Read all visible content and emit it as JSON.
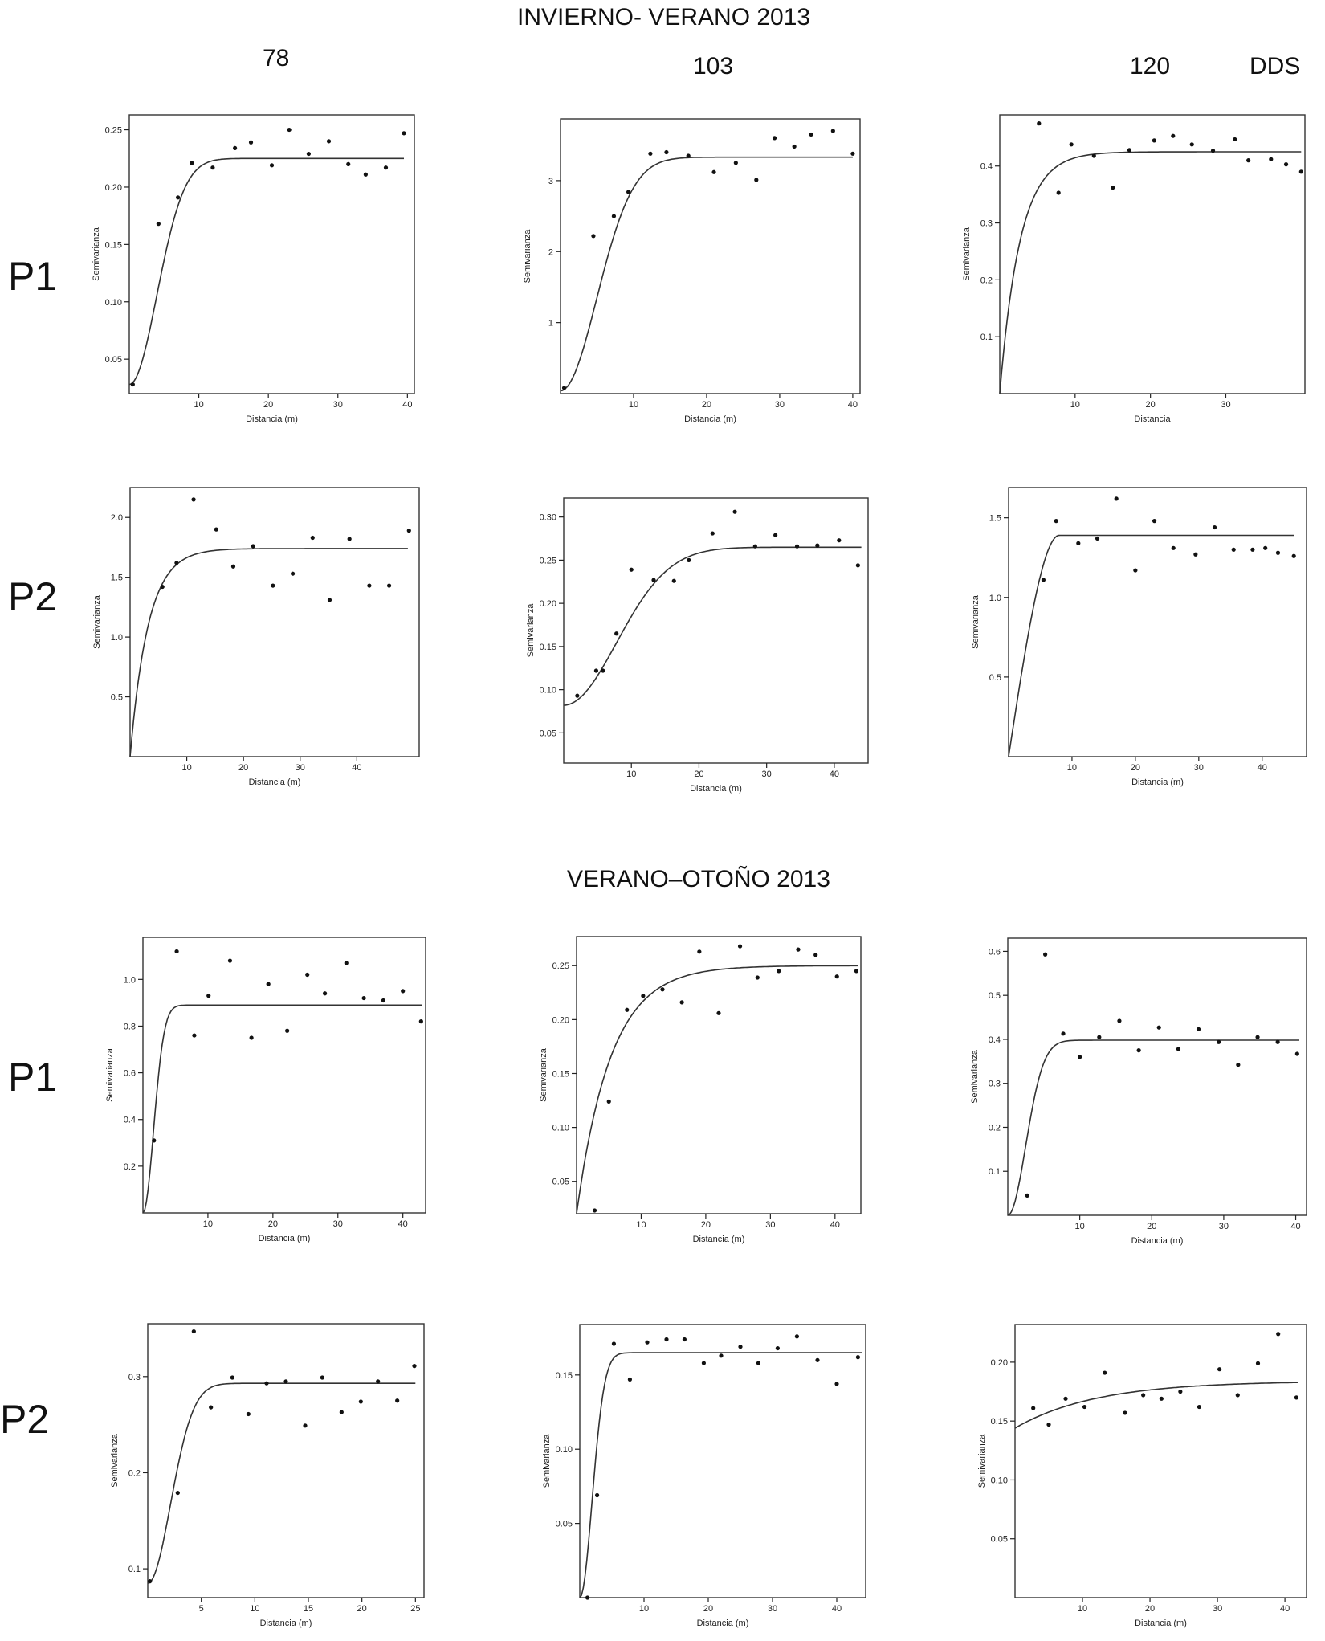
{
  "section_titles": {
    "top": "INVIERNO- VERANO 2013",
    "bottom": "VERANO–OTOÑO 2013"
  },
  "column_headers": {
    "c1": "78",
    "c2": "103",
    "c3": "120",
    "unit": "DDS"
  },
  "row_labels": {
    "top_p1": "P1",
    "top_p2": "P2",
    "bot_p1": "P1",
    "bot_p2": "P2"
  },
  "chart_data": [
    {
      "type": "scatter",
      "section": "INVIERNO- VERANO 2013",
      "row": "P1",
      "column": "78",
      "xlabel": "Distancia (m)",
      "ylabel": "Semivarianza",
      "xlim": [
        0,
        41
      ],
      "ylim": [
        0.02,
        0.263
      ],
      "xticks": [
        10,
        20,
        30,
        40
      ],
      "yticks": [
        0.05,
        0.1,
        0.15,
        0.2,
        0.25
      ],
      "yticklabels": [
        "0.05",
        "0.10",
        "0.15",
        "0.20",
        "0.25"
      ],
      "model": {
        "kind": "gaussian",
        "nugget": 0.028,
        "sill": 0.225,
        "range": 5.6,
        "xmax": 39.5
      },
      "x": [
        0.5,
        4.2,
        7.0,
        9.0,
        12.0,
        15.2,
        17.5,
        20.5,
        23.0,
        25.8,
        28.7,
        31.5,
        34.0,
        36.9,
        39.5
      ],
      "y": [
        0.028,
        0.168,
        0.191,
        0.221,
        0.217,
        0.234,
        0.239,
        0.219,
        0.25,
        0.229,
        0.24,
        0.22,
        0.211,
        0.217,
        0.247
      ]
    },
    {
      "type": "scatter",
      "section": "INVIERNO- VERANO 2013",
      "row": "P1",
      "column": "103",
      "xlabel": "Distancia (m)",
      "ylabel": "Semivarianza",
      "xlim": [
        0,
        41
      ],
      "ylim": [
        0,
        3.87
      ],
      "xticks": [
        10,
        20,
        30,
        40
      ],
      "yticks": [
        1,
        2,
        3
      ],
      "yticklabels": [
        "1",
        "2",
        "3"
      ],
      "model": {
        "kind": "gaussian",
        "nugget": 0.04,
        "sill": 3.33,
        "range": 7.0,
        "xmax": 40
      },
      "x": [
        0.5,
        4.5,
        7.3,
        9.3,
        12.3,
        14.5,
        17.5,
        21.0,
        24.0,
        26.8,
        29.3,
        32.0,
        34.3,
        37.3,
        40.0
      ],
      "y": [
        0.08,
        2.22,
        2.5,
        2.84,
        3.38,
        3.4,
        3.35,
        3.12,
        3.25,
        3.01,
        3.6,
        3.48,
        3.65,
        3.7,
        3.38
      ]
    },
    {
      "type": "scatter",
      "section": "INVIERNO- VERANO 2013",
      "row": "P1",
      "column": "120",
      "xlabel": "Distancia",
      "ylabel": "Semivarianza",
      "xlim": [
        0,
        40.5
      ],
      "ylim": [
        0,
        0.49
      ],
      "xticks": [
        10,
        20,
        30
      ],
      "yticks": [
        0.1,
        0.2,
        0.3,
        0.4
      ],
      "yticklabels": [
        "0.1",
        "0.2",
        "0.3",
        "0.4"
      ],
      "model": {
        "kind": "exponential",
        "nugget": 0,
        "sill": 0.425,
        "range": 2.7,
        "xmax": 40
      },
      "x": [
        5.2,
        7.8,
        9.5,
        12.5,
        15.0,
        17.2,
        20.5,
        23.0,
        25.5,
        28.3,
        31.2,
        33.0,
        36.0,
        38.0,
        40.0
      ],
      "y": [
        0.475,
        0.353,
        0.438,
        0.418,
        0.362,
        0.428,
        0.445,
        0.453,
        0.438,
        0.427,
        0.447,
        0.41,
        0.412,
        0.403,
        0.39
      ]
    },
    {
      "type": "scatter",
      "section": "INVIERNO- VERANO 2013",
      "row": "P2",
      "column": "78",
      "xlabel": "Distancia (m)",
      "ylabel": "Semivarianza",
      "xlim": [
        0,
        51
      ],
      "ylim": [
        0,
        2.25
      ],
      "xticks": [
        10,
        20,
        30,
        40
      ],
      "yticks": [
        0.5,
        1.0,
        1.5,
        2.0
      ],
      "yticklabels": [
        "0.5",
        "1.0",
        "1.5",
        "2.0"
      ],
      "model": {
        "kind": "exponential",
        "nugget": 0,
        "sill": 1.74,
        "range": 3.2,
        "xmax": 49
      },
      "x": [
        5.7,
        8.2,
        11.2,
        15.2,
        18.2,
        21.7,
        25.2,
        28.7,
        32.2,
        35.2,
        38.7,
        42.2,
        45.7,
        49.2
      ],
      "y": [
        1.42,
        1.62,
        2.15,
        1.9,
        1.59,
        1.76,
        1.43,
        1.53,
        1.83,
        1.31,
        1.82,
        1.43,
        1.43,
        1.89
      ]
    },
    {
      "type": "scatter",
      "section": "INVIERNO- VERANO 2013",
      "row": "P2",
      "column": "103",
      "xlabel": "Distancia (m)",
      "ylabel": "Semivarianza",
      "xlim": [
        0,
        45
      ],
      "ylim": [
        0.015,
        0.322
      ],
      "xticks": [
        10,
        20,
        30,
        40
      ],
      "yticks": [
        0.05,
        0.1,
        0.15,
        0.2,
        0.25,
        0.3
      ],
      "yticklabels": [
        "0.05",
        "0.10",
        "0.15",
        "0.20",
        "0.25",
        "0.30"
      ],
      "model": {
        "kind": "gaussian",
        "nugget": 0.082,
        "sill": 0.265,
        "range": 11.0,
        "xmax": 44
      },
      "x": [
        2.0,
        4.8,
        5.8,
        7.8,
        10.0,
        13.3,
        16.3,
        18.5,
        22.0,
        25.3,
        28.3,
        31.3,
        34.5,
        37.5,
        40.7,
        43.5
      ],
      "y": [
        0.093,
        0.122,
        0.122,
        0.165,
        0.239,
        0.227,
        0.226,
        0.25,
        0.281,
        0.306,
        0.266,
        0.279,
        0.266,
        0.267,
        0.273,
        0.244
      ]
    },
    {
      "type": "scatter",
      "section": "INVIERNO- VERANO 2013",
      "row": "P2",
      "column": "120",
      "xlabel": "Distancia (m)",
      "ylabel": "Semivarianza",
      "xlim": [
        0,
        47
      ],
      "ylim": [
        0,
        1.69
      ],
      "xticks": [
        10,
        20,
        30,
        40
      ],
      "yticks": [
        0.5,
        1.0,
        1.5
      ],
      "yticklabels": [
        "0.5",
        "1.0",
        "1.5"
      ],
      "model": {
        "kind": "spherical",
        "nugget": 0,
        "sill": 1.39,
        "range": 8.0,
        "xmax": 45
      },
      "x": [
        5.5,
        7.5,
        11.0,
        14.0,
        17.0,
        20.0,
        23.0,
        26.0,
        29.5,
        32.5,
        35.5,
        38.5,
        40.5,
        42.5,
        45.0
      ],
      "y": [
        1.11,
        1.48,
        1.34,
        1.37,
        1.62,
        1.17,
        1.48,
        1.31,
        1.27,
        1.44,
        1.3,
        1.3,
        1.31,
        1.28,
        1.26
      ]
    },
    {
      "type": "scatter",
      "section": "VERANO–OTOÑO 2013",
      "row": "P1",
      "column": "78",
      "xlabel": "Distancia (m)",
      "ylabel": "Semivarianza",
      "xlim": [
        0,
        43.5
      ],
      "ylim": [
        0,
        1.18
      ],
      "xticks": [
        10,
        20,
        30,
        40
      ],
      "yticks": [
        0.2,
        0.4,
        0.6,
        0.8,
        1.0
      ],
      "yticklabels": [
        "0.2",
        "0.4",
        "0.6",
        "0.8",
        "1.0"
      ],
      "model": {
        "kind": "gaussian",
        "nugget": 0,
        "sill": 0.89,
        "range": 2.3,
        "xmax": 43
      },
      "x": [
        1.7,
        5.2,
        7.9,
        10.1,
        13.4,
        16.7,
        19.3,
        22.2,
        25.3,
        28.0,
        31.3,
        34.0,
        37.0,
        40.0,
        42.8
      ],
      "y": [
        0.31,
        1.12,
        0.76,
        0.93,
        1.08,
        0.75,
        0.98,
        0.78,
        1.02,
        0.94,
        1.07,
        0.92,
        0.91,
        0.95,
        0.82
      ]
    },
    {
      "type": "scatter",
      "section": "VERANO–OTOÑO 2013",
      "row": "P1",
      "column": "103",
      "xlabel": "Distancia (m)",
      "ylabel": "Semivarianza",
      "xlim": [
        0,
        44
      ],
      "ylim": [
        0.02,
        0.277
      ],
      "xticks": [
        10,
        20,
        30,
        40
      ],
      "yticks": [
        0.05,
        0.1,
        0.15,
        0.2,
        0.25
      ],
      "yticklabels": [
        "0.05",
        "0.10",
        "0.15",
        "0.20",
        "0.25"
      ],
      "model": {
        "kind": "exponential",
        "nugget": 0.02,
        "sill": 0.25,
        "range": 5.3,
        "xmax": 43.5
      },
      "x": [
        2.8,
        5.0,
        7.8,
        10.3,
        13.3,
        16.3,
        19.0,
        22.0,
        25.3,
        28.0,
        31.3,
        34.3,
        37.0,
        40.3,
        43.3
      ],
      "y": [
        0.023,
        0.124,
        0.209,
        0.222,
        0.228,
        0.216,
        0.263,
        0.206,
        0.268,
        0.239,
        0.245,
        0.265,
        0.26,
        0.24,
        0.245
      ]
    },
    {
      "type": "scatter",
      "section": "VERANO–OTOÑO 2013",
      "row": "P1",
      "column": "120",
      "xlabel": "Distancia (m)",
      "ylabel": "Semivarianza",
      "xlim": [
        0,
        41.5
      ],
      "ylim": [
        0,
        0.63
      ],
      "xticks": [
        10,
        20,
        30,
        40
      ],
      "yticks": [
        0.1,
        0.2,
        0.3,
        0.4,
        0.5,
        0.6
      ],
      "yticklabels": [
        "0.1",
        "0.2",
        "0.3",
        "0.4",
        "0.5",
        "0.6"
      ],
      "model": {
        "kind": "gaussian",
        "nugget": 0,
        "sill": 0.398,
        "range": 3.5,
        "xmax": 40.5
      },
      "x": [
        2.7,
        5.2,
        7.7,
        10.0,
        12.7,
        15.5,
        18.2,
        21.0,
        23.7,
        26.5,
        29.3,
        32.0,
        34.7,
        37.5,
        40.2
      ],
      "y": [
        0.045,
        0.593,
        0.413,
        0.36,
        0.405,
        0.442,
        0.375,
        0.427,
        0.378,
        0.423,
        0.394,
        0.342,
        0.405,
        0.394,
        0.367
      ]
    },
    {
      "type": "scatter",
      "section": "VERANO–OTOÑO 2013",
      "row": "P2",
      "column": "78",
      "xlabel": "Distancia (m)",
      "ylabel": "Semivarianza",
      "xlim": [
        0,
        25.8
      ],
      "ylim": [
        0.07,
        0.355
      ],
      "xticks": [
        5,
        10,
        15,
        20,
        25
      ],
      "yticks": [
        0.1,
        0.2,
        0.3
      ],
      "yticklabels": [
        "0.1",
        "0.2",
        "0.3"
      ],
      "model": {
        "kind": "gaussian",
        "nugget": 0.085,
        "sill": 0.293,
        "range": 3.0,
        "xmax": 25
      },
      "x": [
        0.2,
        2.8,
        4.3,
        5.9,
        7.9,
        9.4,
        11.1,
        12.9,
        14.7,
        16.3,
        18.1,
        19.9,
        21.5,
        23.3,
        24.9
      ],
      "y": [
        0.087,
        0.179,
        0.347,
        0.268,
        0.299,
        0.261,
        0.293,
        0.295,
        0.249,
        0.299,
        0.263,
        0.274,
        0.295,
        0.275,
        0.311
      ]
    },
    {
      "type": "scatter",
      "section": "VERANO–OTOÑO 2013",
      "row": "P2",
      "column": "103",
      "xlabel": "Distancia (m)",
      "ylabel": "Semivarianza",
      "xlim": [
        0,
        44.5
      ],
      "ylim": [
        0,
        0.184
      ],
      "xticks": [
        10,
        20,
        30,
        40
      ],
      "yticks": [
        0.05,
        0.1,
        0.15
      ],
      "yticklabels": [
        "0.05",
        "0.10",
        "0.15"
      ],
      "model": {
        "kind": "gaussian",
        "nugget": 0,
        "sill": 0.165,
        "range": 2.7,
        "xmax": 44
      },
      "x": [
        1.2,
        2.7,
        5.3,
        7.8,
        10.5,
        13.5,
        16.3,
        19.3,
        22.0,
        25.0,
        27.8,
        30.8,
        33.8,
        37.0,
        40.0,
        43.3
      ],
      "y": [
        0.0,
        0.069,
        0.171,
        0.147,
        0.172,
        0.174,
        0.174,
        0.158,
        0.163,
        0.169,
        0.158,
        0.168,
        0.176,
        0.16,
        0.144,
        0.162
      ]
    },
    {
      "type": "scatter",
      "section": "VERANO–OTOÑO 2013",
      "row": "P2",
      "column": "120",
      "xlabel": "Distancia (m)",
      "ylabel": "Semivarianza",
      "xlim": [
        0,
        43.2
      ],
      "ylim": [
        0,
        0.232
      ],
      "xticks": [
        10,
        20,
        30,
        40
      ],
      "yticks": [
        0.05,
        0.1,
        0.15,
        0.2
      ],
      "yticklabels": [
        "0.05",
        "0.10",
        "0.15",
        "0.20"
      ],
      "model": {
        "kind": "exponential",
        "nugget": 0.144,
        "sill": 0.184,
        "range": 12.0,
        "xmax": 42
      },
      "x": [
        2.7,
        5.0,
        7.5,
        10.3,
        13.3,
        16.3,
        19.0,
        21.7,
        24.5,
        27.3,
        30.3,
        33.0,
        36.0,
        39.0,
        41.7
      ],
      "y": [
        0.161,
        0.147,
        0.169,
        0.162,
        0.191,
        0.157,
        0.172,
        0.169,
        0.175,
        0.162,
        0.194,
        0.172,
        0.199,
        0.224,
        0.17
      ]
    }
  ]
}
